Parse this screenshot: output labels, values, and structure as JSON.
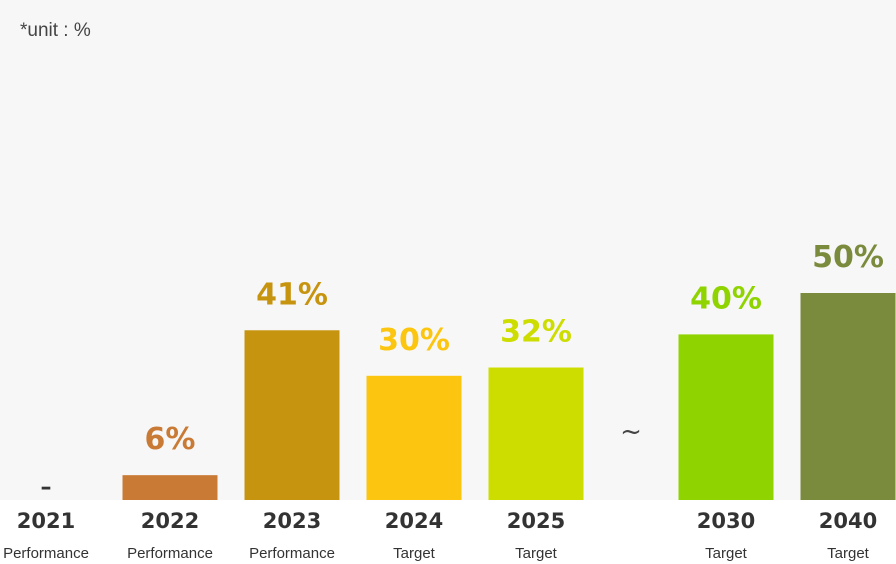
{
  "unit_note": "*unit : %",
  "break_mark": "~",
  "chart_data": {
    "type": "bar",
    "title": "",
    "xlabel": "",
    "ylabel": "",
    "ylim": [
      0,
      100
    ],
    "grid": false,
    "categories": [
      "2021",
      "2022",
      "2023",
      "2024",
      "2025",
      "2030",
      "2040"
    ],
    "sublabels": [
      "Performance",
      "Performance",
      "Performance",
      "Target",
      "Target",
      "Target",
      "Target"
    ],
    "values": [
      null,
      6,
      41,
      30,
      32,
      40,
      50
    ],
    "data_labels": [
      "–",
      "6%",
      "41%",
      "30%",
      "32%",
      "40%",
      "50%"
    ],
    "colors": [
      "#c97b35",
      "#c97b35",
      "#c79410",
      "#fcc50f",
      "#cddd00",
      "#8fd400",
      "#7b8b3d"
    ],
    "label_colors": [
      "#333333",
      "#c97b35",
      "#c79410",
      "#fcc50f",
      "#cddd00",
      "#8fd400",
      "#7b8b3d"
    ]
  }
}
